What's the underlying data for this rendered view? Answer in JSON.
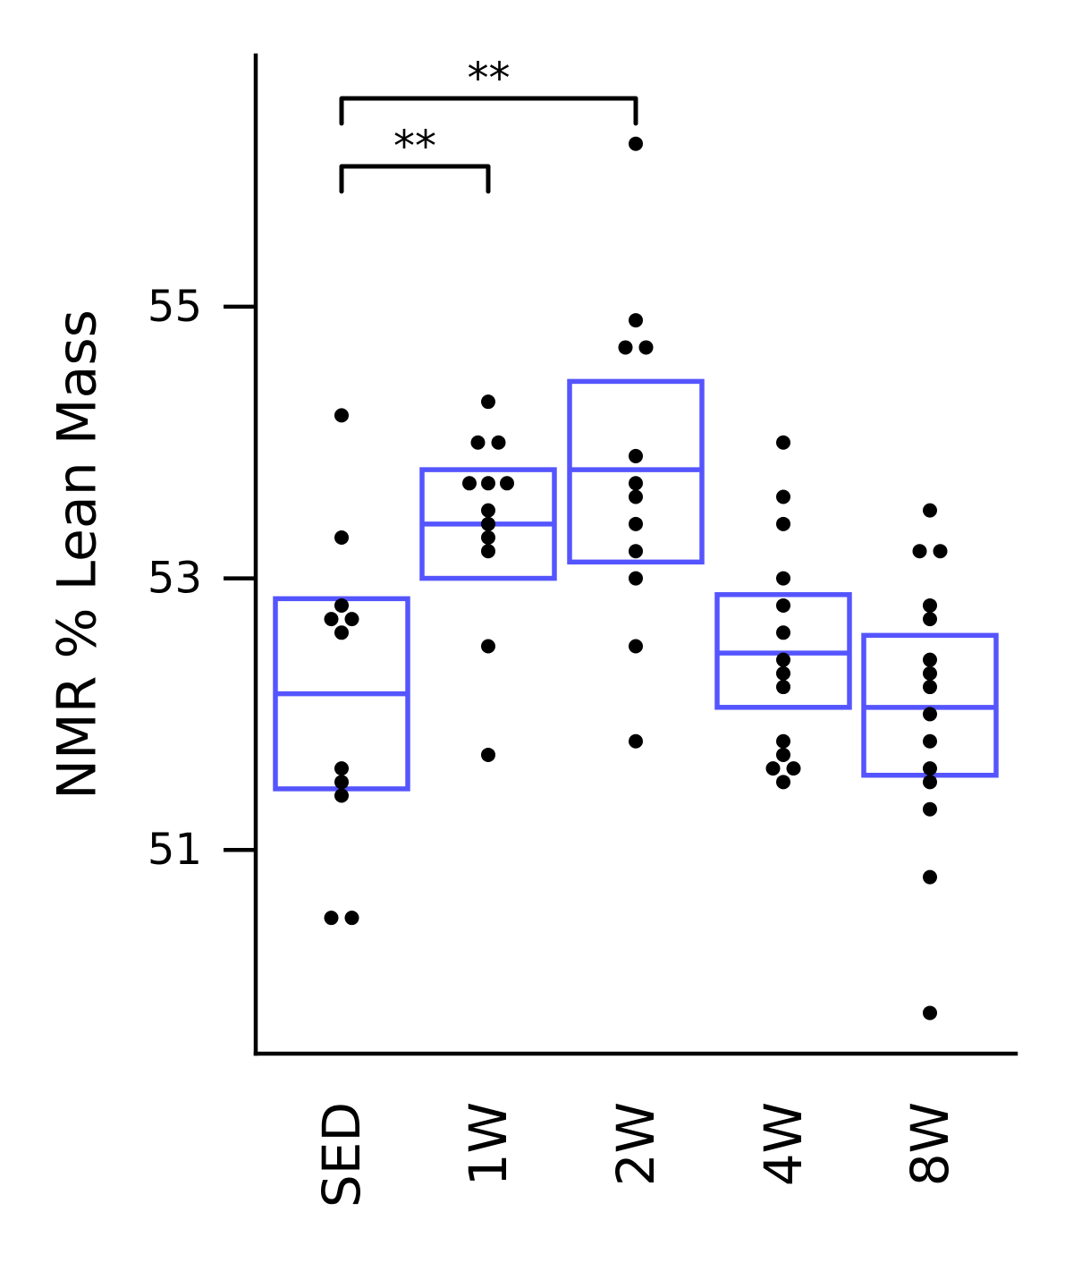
{
  "chart_data": {
    "type": "box",
    "ylabel": "NMR % Lean Mass",
    "xlabel": "",
    "categories": [
      "SED",
      "1W",
      "2W",
      "4W",
      "8W"
    ],
    "yticks": [
      51,
      53,
      55
    ],
    "ylim": [
      49.5,
      56.85
    ],
    "grid": false,
    "box_color": "#5555ff",
    "point_color": "#000000",
    "boxes": [
      {
        "category": "SED",
        "q1": 51.45,
        "median": 52.15,
        "q3": 52.85
      },
      {
        "category": "1W",
        "q1": 53.0,
        "median": 53.4,
        "q3": 53.8
      },
      {
        "category": "2W",
        "q1": 53.12,
        "median": 53.8,
        "q3": 54.45
      },
      {
        "category": "4W",
        "q1": 52.05,
        "median": 52.45,
        "q3": 52.88
      },
      {
        "category": "8W",
        "q1": 51.55,
        "median": 52.05,
        "q3": 52.58
      }
    ],
    "points": [
      {
        "category": "SED",
        "values": [
          54.2,
          53.3,
          52.8,
          52.7,
          52.7,
          52.6,
          51.6,
          51.5,
          51.4,
          50.5,
          50.5
        ]
      },
      {
        "category": "1W",
        "values": [
          54.3,
          54.0,
          54.0,
          53.7,
          53.7,
          53.7,
          53.5,
          53.4,
          53.3,
          53.2,
          52.5,
          51.7
        ]
      },
      {
        "category": "2W",
        "values": [
          56.2,
          54.9,
          54.7,
          54.7,
          53.9,
          53.7,
          53.6,
          53.4,
          53.2,
          53.0,
          52.5,
          51.8
        ]
      },
      {
        "category": "4W",
        "values": [
          54.0,
          53.6,
          53.4,
          53.0,
          52.8,
          52.6,
          52.4,
          52.3,
          52.2,
          51.8,
          51.7,
          51.6,
          51.6,
          51.5
        ]
      },
      {
        "category": "8W",
        "values": [
          53.5,
          53.2,
          53.2,
          52.8,
          52.7,
          52.4,
          52.3,
          52.2,
          52.0,
          51.8,
          51.6,
          51.5,
          51.3,
          50.8,
          49.8
        ]
      }
    ],
    "annotations": [
      {
        "from": "SED",
        "to": "1W",
        "label": "**",
        "level": 1
      },
      {
        "from": "SED",
        "to": "2W",
        "label": "**",
        "level": 2
      }
    ]
  }
}
